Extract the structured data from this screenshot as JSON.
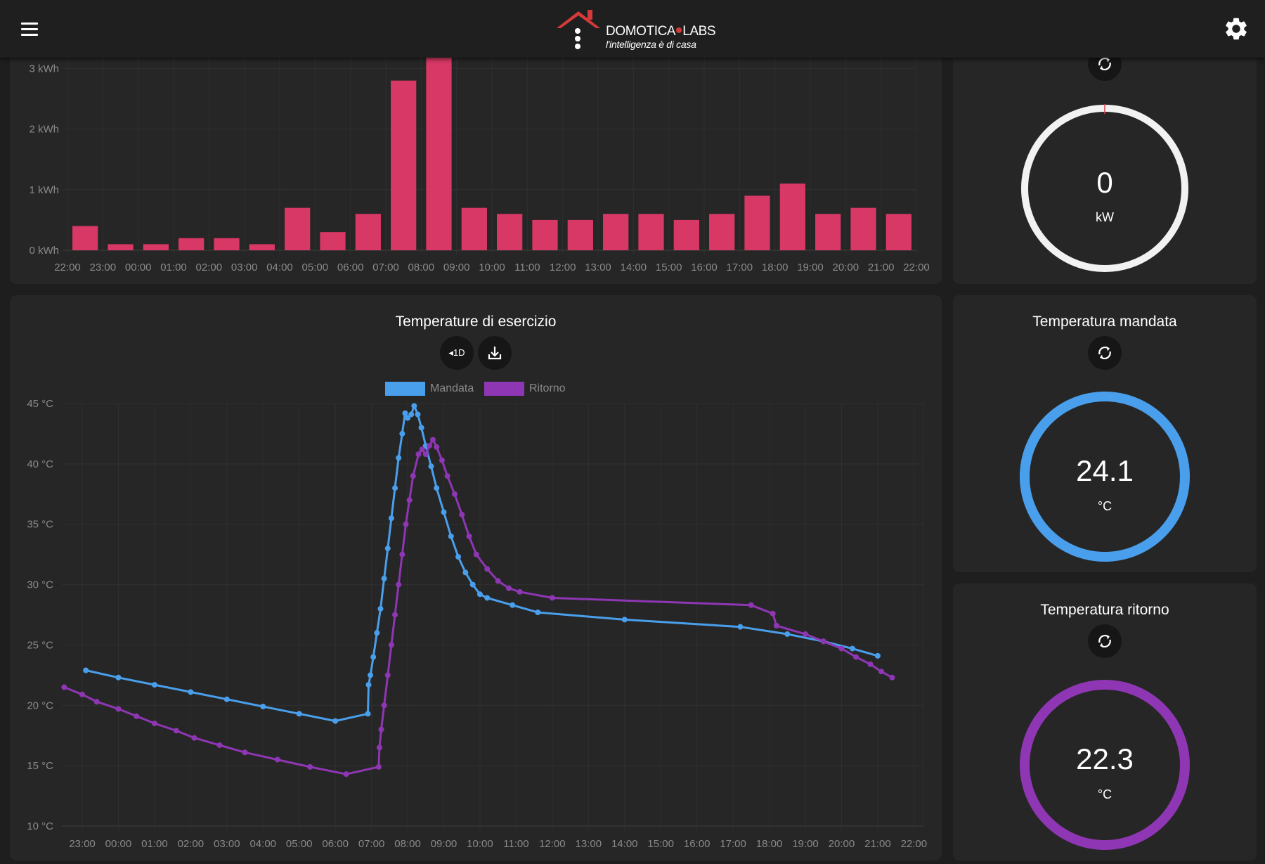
{
  "header": {
    "menu_icon": "hamburger-menu-icon",
    "settings_icon": "gear-icon",
    "logo": {
      "name_part1": "DOMOTICA",
      "name_part2": "LABS",
      "tagline": "l'intelligenza è di casa"
    }
  },
  "energy_chart": {
    "chart_data": {
      "type": "bar",
      "y_unit": "kWh",
      "y_ticks": [
        "0 kWh",
        "1 kWh",
        "2 kWh",
        "3 kWh"
      ],
      "x_ticks": [
        "22:00",
        "23:00",
        "00:00",
        "01:00",
        "02:00",
        "03:00",
        "04:00",
        "05:00",
        "06:00",
        "07:00",
        "08:00",
        "09:00",
        "10:00",
        "11:00",
        "12:00",
        "13:00",
        "14:00",
        "15:00",
        "16:00",
        "17:00",
        "18:00",
        "19:00",
        "20:00",
        "21:00",
        "22:00"
      ],
      "values": [
        0.4,
        0.1,
        0.1,
        0.2,
        0.2,
        0.1,
        0.7,
        0.3,
        0.6,
        2.8,
        3.2,
        0.7,
        0.6,
        0.5,
        0.5,
        0.6,
        0.6,
        0.5,
        0.6,
        0.9,
        1.1,
        0.6,
        0.7,
        0.6
      ],
      "color": "#d83865",
      "grid": true
    }
  },
  "power_gauge": {
    "value": "0",
    "unit": "kW",
    "ring_color": "#f2f2f2",
    "marker_color": "#e04050",
    "refresh_icon": "refresh-icon"
  },
  "temps_chart": {
    "title": "Temperature di esercizio",
    "range_button_label": "1D",
    "download_icon": "download-icon",
    "legend": [
      {
        "name": "Mandata",
        "color": "#4a9fec"
      },
      {
        "name": "Ritorno",
        "color": "#8e36b3"
      }
    ],
    "chart_data": {
      "type": "line",
      "y_ticks": [
        "10 °C",
        "15 °C",
        "20 °C",
        "25 °C",
        "30 °C",
        "35 °C",
        "40 °C",
        "45 °C"
      ],
      "ylim": [
        10,
        45
      ],
      "x_ticks": [
        "23:00",
        "00:00",
        "01:00",
        "02:00",
        "03:00",
        "04:00",
        "05:00",
        "06:00",
        "07:00",
        "08:00",
        "09:00",
        "10:00",
        "11:00",
        "12:00",
        "13:00",
        "14:00",
        "15:00",
        "16:00",
        "17:00",
        "18:00",
        "19:00",
        "20:00",
        "21:00",
        "22:00"
      ],
      "x_unit": "hours since 23:00",
      "series": [
        {
          "name": "Mandata",
          "color": "#4a9fec",
          "points": [
            [
              0.1,
              22.9
            ],
            [
              1.0,
              22.3
            ],
            [
              2.0,
              21.7
            ],
            [
              3.0,
              21.1
            ],
            [
              4.0,
              20.5
            ],
            [
              5.0,
              19.9
            ],
            [
              6.0,
              19.3
            ],
            [
              7.0,
              18.7
            ],
            [
              7.9,
              19.3
            ],
            [
              7.92,
              21.7
            ],
            [
              7.97,
              22.5
            ],
            [
              8.05,
              24.0
            ],
            [
              8.15,
              26.0
            ],
            [
              8.25,
              28.0
            ],
            [
              8.35,
              30.5
            ],
            [
              8.45,
              33.0
            ],
            [
              8.55,
              35.5
            ],
            [
              8.65,
              38.0
            ],
            [
              8.75,
              40.5
            ],
            [
              8.85,
              42.5
            ],
            [
              8.93,
              44.2
            ],
            [
              9.0,
              43.8
            ],
            [
              9.1,
              44.1
            ],
            [
              9.18,
              44.8
            ],
            [
              9.28,
              44.1
            ],
            [
              9.38,
              43.0
            ],
            [
              9.5,
              41.5
            ],
            [
              9.65,
              39.8
            ],
            [
              9.8,
              38.0
            ],
            [
              10.0,
              36.0
            ],
            [
              10.2,
              34.0
            ],
            [
              10.4,
              32.3
            ],
            [
              10.6,
              31.0
            ],
            [
              10.8,
              30.0
            ],
            [
              11.0,
              29.2
            ],
            [
              11.2,
              28.9
            ],
            [
              11.9,
              28.3
            ],
            [
              12.6,
              27.7
            ],
            [
              15.0,
              27.1
            ],
            [
              18.2,
              26.5
            ],
            [
              19.5,
              25.9
            ],
            [
              20.5,
              25.3
            ],
            [
              21.3,
              24.7
            ],
            [
              22.0,
              24.1
            ]
          ]
        },
        {
          "name": "Ritorno",
          "color": "#8e36b3",
          "points": [
            [
              -0.5,
              21.5
            ],
            [
              0.0,
              20.9
            ],
            [
              0.4,
              20.3
            ],
            [
              1.0,
              19.7
            ],
            [
              1.5,
              19.1
            ],
            [
              2.0,
              18.5
            ],
            [
              2.6,
              17.9
            ],
            [
              3.1,
              17.3
            ],
            [
              3.8,
              16.7
            ],
            [
              4.5,
              16.1
            ],
            [
              5.4,
              15.5
            ],
            [
              6.3,
              14.9
            ],
            [
              7.3,
              14.3
            ],
            [
              8.2,
              14.9
            ],
            [
              8.22,
              16.5
            ],
            [
              8.27,
              18.0
            ],
            [
              8.35,
              20.0
            ],
            [
              8.45,
              22.5
            ],
            [
              8.55,
              25.0
            ],
            [
              8.65,
              27.5
            ],
            [
              8.75,
              30.0
            ],
            [
              8.85,
              32.5
            ],
            [
              8.95,
              35.0
            ],
            [
              9.05,
              37.0
            ],
            [
              9.15,
              39.0
            ],
            [
              9.3,
              40.8
            ],
            [
              9.4,
              41.2
            ],
            [
              9.5,
              40.8
            ],
            [
              9.6,
              41.5
            ],
            [
              9.7,
              42.0
            ],
            [
              9.8,
              41.4
            ],
            [
              9.95,
              40.3
            ],
            [
              10.1,
              39.0
            ],
            [
              10.3,
              37.5
            ],
            [
              10.5,
              35.8
            ],
            [
              10.7,
              34.0
            ],
            [
              10.9,
              32.5
            ],
            [
              11.2,
              31.3
            ],
            [
              11.5,
              30.3
            ],
            [
              11.8,
              29.7
            ],
            [
              12.1,
              29.4
            ],
            [
              13.0,
              28.9
            ],
            [
              18.5,
              28.3
            ],
            [
              19.1,
              27.6
            ],
            [
              19.2,
              26.6
            ],
            [
              20.0,
              25.9
            ],
            [
              20.5,
              25.3
            ],
            [
              21.0,
              24.7
            ],
            [
              21.4,
              24.0
            ],
            [
              21.8,
              23.4
            ],
            [
              22.1,
              22.8
            ],
            [
              22.4,
              22.3
            ]
          ]
        }
      ]
    }
  },
  "mandata_gauge": {
    "title": "Temperatura mandata",
    "value": "24.1",
    "unit": "°C",
    "ring_color": "#4a9fec",
    "refresh_icon": "refresh-icon"
  },
  "ritorno_gauge": {
    "title": "Temperatura ritorno",
    "value": "22.3",
    "unit": "°C",
    "ring_color": "#8e36b3",
    "refresh_icon": "refresh-icon"
  }
}
